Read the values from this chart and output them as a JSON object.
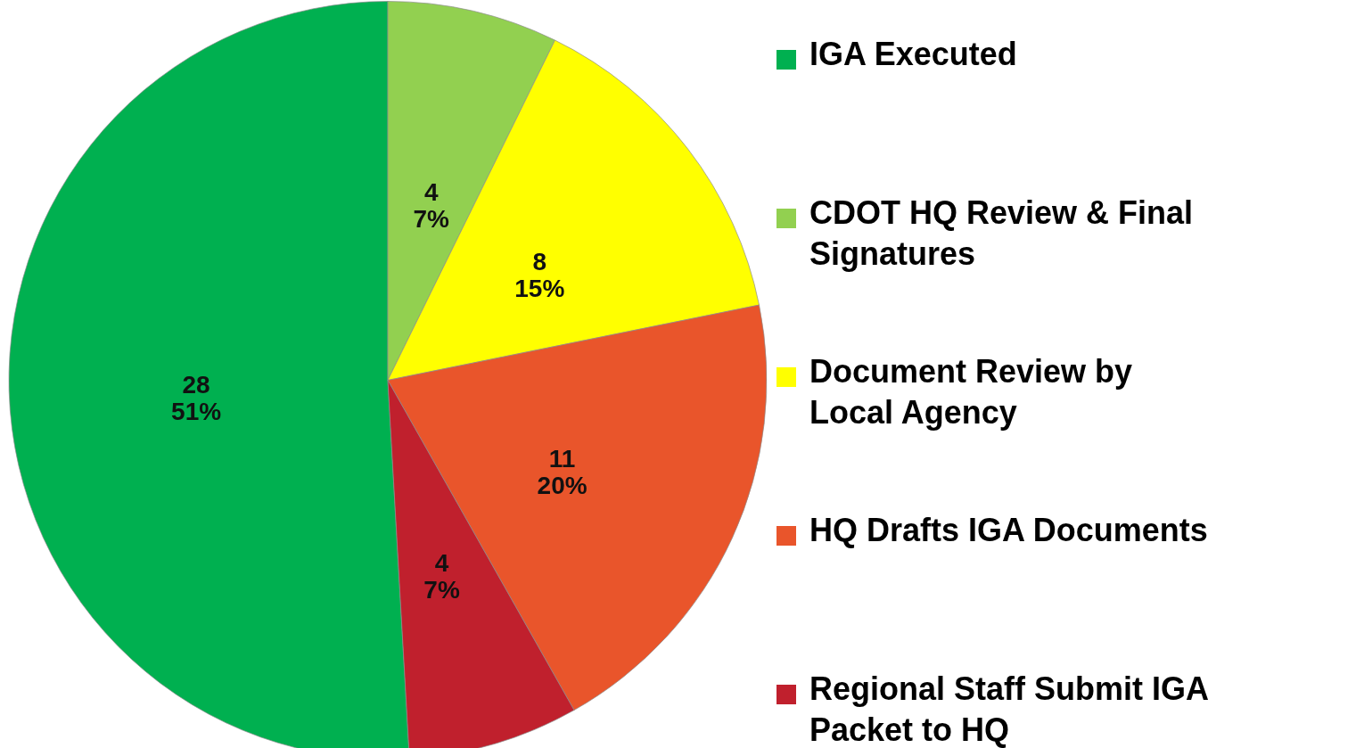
{
  "chart_data": {
    "type": "pie",
    "categories": [
      "IGA Executed",
      "CDOT HQ Review & Final Signatures",
      "Document Review by Local Agency",
      "HQ Drafts IGA Documents",
      "Regional Staff Submit IGA Packet to HQ"
    ],
    "values": [
      28,
      4,
      8,
      11,
      4
    ],
    "colors": [
      "#00b050",
      "#92d050",
      "#ffff00",
      "#e9552b",
      "#c0202d"
    ],
    "value_labels": [
      "28\n51%",
      "4\n7%",
      "8\n15%",
      "11\n20%",
      "4\n7%"
    ],
    "legend": "right"
  }
}
